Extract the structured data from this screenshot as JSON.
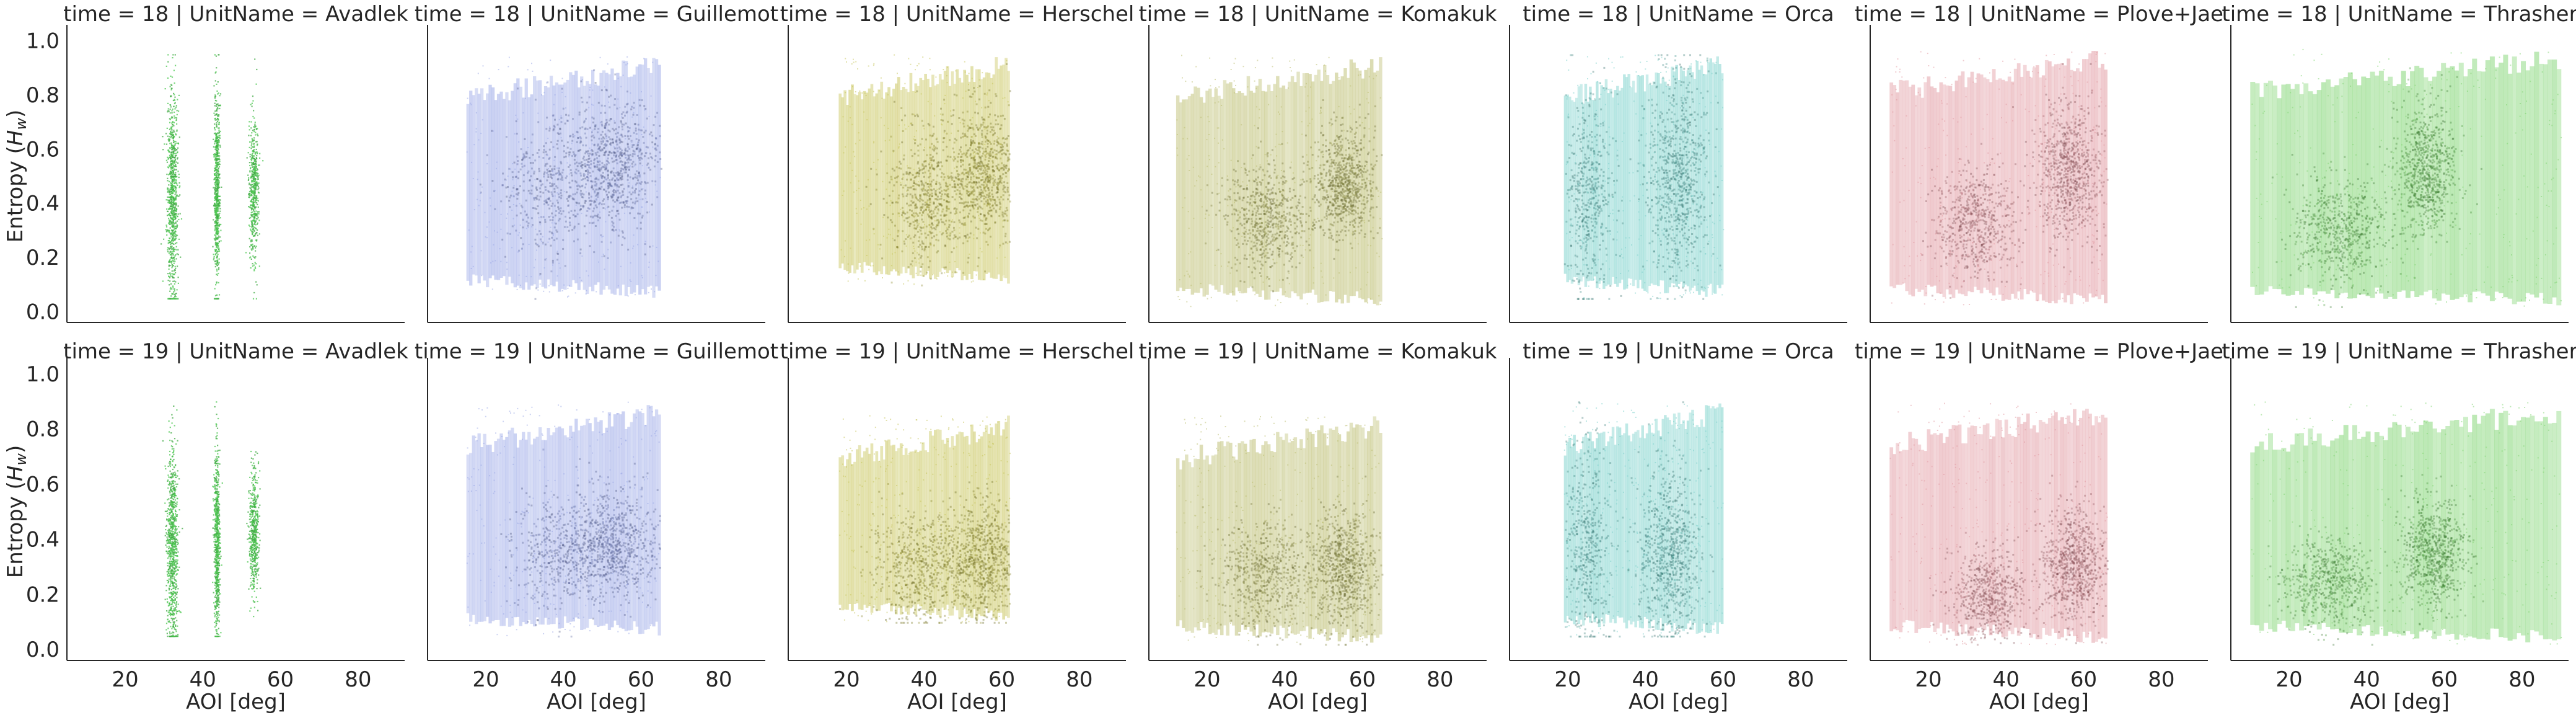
{
  "figure": {
    "y_axis_label": "Entropy (",
    "y_axis_label_sym": "H",
    "y_axis_label_sub": "w",
    "y_axis_label_end": ")",
    "x_axis_label": "AOI [deg]",
    "rows": [
      "time = 18",
      "time = 19"
    ],
    "x_ticks": [
      "20",
      "40",
      "60",
      "80"
    ],
    "y_ticks": [
      "0.0",
      "0.2",
      "0.4",
      "0.6",
      "0.8",
      "1.0"
    ]
  },
  "chart_data": [
    {
      "type": "scatter",
      "title": "time = 18 | UnitName = Avadlek",
      "color": "#4cc850",
      "x_range": [
        10,
        60
      ],
      "y_range": [
        0.05,
        0.95
      ],
      "xlabel": "",
      "ylabel": "Entropy (Hw)",
      "xlim": [
        5,
        92
      ],
      "ylim": [
        -0.04,
        1.04
      ],
      "clusters": [
        {
          "x": 32,
          "x_spread": 1.2,
          "y_center": 0.42,
          "y_spread": 0.22,
          "weight": 1.0
        },
        {
          "x": 43.5,
          "x_spread": 0.6,
          "y_center": 0.45,
          "y_spread": 0.2,
          "weight": 0.8
        },
        {
          "x": 53,
          "x_spread": 1.0,
          "y_center": 0.45,
          "y_spread": 0.15,
          "weight": 0.6
        }
      ]
    },
    {
      "type": "scatter",
      "title": "time = 18 | UnitName = Guillemot",
      "color": "#7e8fe0",
      "x_range": [
        15,
        65
      ],
      "y_range": [
        0.05,
        0.95
      ],
      "xlabel": "",
      "ylabel": "",
      "xlim": [
        5,
        92
      ],
      "ylim": [
        -0.04,
        1.04
      ],
      "clusters": [
        {
          "x": 52,
          "x_spread": 6,
          "y_center": 0.55,
          "y_spread": 0.12,
          "weight": 1.0
        },
        {
          "x": 36,
          "x_spread": 6,
          "y_center": 0.45,
          "y_spread": 0.12,
          "weight": 0.5
        }
      ]
    },
    {
      "type": "scatter",
      "title": "time = 18 | UnitName = Herschel",
      "color": "#b8b42c",
      "x_range": [
        18,
        62
      ],
      "y_range": [
        0.1,
        0.95
      ],
      "xlabel": "",
      "ylabel": "",
      "xlim": [
        5,
        92
      ],
      "ylim": [
        -0.04,
        1.04
      ],
      "clusters": [
        {
          "x": 55,
          "x_spread": 5,
          "y_center": 0.52,
          "y_spread": 0.12,
          "weight": 1.0
        },
        {
          "x": 40,
          "x_spread": 5,
          "y_center": 0.42,
          "y_spread": 0.12,
          "weight": 0.7
        }
      ]
    },
    {
      "type": "scatter",
      "title": "time = 18 | UnitName = Komakuk",
      "color": "#a8aa46",
      "x_range": [
        12,
        65
      ],
      "y_range": [
        0.02,
        0.95
      ],
      "xlabel": "",
      "ylabel": "",
      "xlim": [
        5,
        92
      ],
      "ylim": [
        -0.04,
        1.04
      ],
      "clusters": [
        {
          "x": 55,
          "x_spread": 4,
          "y_center": 0.47,
          "y_spread": 0.1,
          "weight": 1.0
        },
        {
          "x": 35,
          "x_spread": 5,
          "y_center": 0.35,
          "y_spread": 0.1,
          "weight": 0.8
        }
      ]
    },
    {
      "type": "scatter",
      "title": "time = 18 | UnitName = Orca",
      "color": "#56c4bc",
      "x_range": [
        19,
        60
      ],
      "y_range": [
        0.05,
        0.95
      ],
      "xlabel": "",
      "ylabel": "",
      "xlim": [
        5,
        92
      ],
      "ylim": [
        -0.04,
        1.04
      ],
      "clusters": [
        {
          "x": 48,
          "x_spread": 4,
          "y_center": 0.5,
          "y_spread": 0.18,
          "weight": 1.0
        },
        {
          "x": 25,
          "x_spread": 3,
          "y_center": 0.45,
          "y_spread": 0.18,
          "weight": 0.6
        }
      ]
    },
    {
      "type": "scatter",
      "title": "time = 18 | UnitName = Plove+Jae",
      "color": "#d97e88",
      "x_range": [
        10,
        66
      ],
      "y_range": [
        0.02,
        0.97
      ],
      "xlabel": "",
      "ylabel": "",
      "xlim": [
        5,
        92
      ],
      "ylim": [
        -0.04,
        1.04
      ],
      "clusters": [
        {
          "x": 56,
          "x_spread": 4,
          "y_center": 0.52,
          "y_spread": 0.12,
          "weight": 1.0
        },
        {
          "x": 32,
          "x_spread": 5,
          "y_center": 0.33,
          "y_spread": 0.1,
          "weight": 0.8
        }
      ]
    },
    {
      "type": "scatter",
      "title": "time = 18 | UnitName = Thrasher",
      "color": "#5cc84a",
      "x_range": [
        10,
        90
      ],
      "y_range": [
        0.02,
        0.97
      ],
      "xlabel": "",
      "ylabel": "",
      "xlim": [
        5,
        92
      ],
      "ylim": [
        -0.04,
        1.04
      ],
      "clusters": [
        {
          "x": 55,
          "x_spread": 4,
          "y_center": 0.52,
          "y_spread": 0.12,
          "weight": 1.0
        },
        {
          "x": 33,
          "x_spread": 6,
          "y_center": 0.3,
          "y_spread": 0.1,
          "weight": 0.8
        }
      ]
    },
    {
      "type": "scatter",
      "title": "time = 19 | UnitName = Avadlek",
      "color": "#4cc850",
      "x_range": [
        10,
        60
      ],
      "y_range": [
        0.05,
        0.9
      ],
      "xlabel": "AOI [deg]",
      "ylabel": "Entropy (Hw)",
      "xlim": [
        5,
        92
      ],
      "ylim": [
        -0.04,
        1.04
      ],
      "clusters": [
        {
          "x": 32,
          "x_spread": 1.2,
          "y_center": 0.38,
          "y_spread": 0.2,
          "weight": 1.0
        },
        {
          "x": 43.5,
          "x_spread": 0.6,
          "y_center": 0.4,
          "y_spread": 0.18,
          "weight": 0.8
        },
        {
          "x": 53,
          "x_spread": 1.0,
          "y_center": 0.42,
          "y_spread": 0.12,
          "weight": 0.6
        }
      ]
    },
    {
      "type": "scatter",
      "title": "time = 19 | UnitName = Guillemot",
      "color": "#7e8fe0",
      "x_range": [
        15,
        65
      ],
      "y_range": [
        0.05,
        0.9
      ],
      "xlabel": "AOI [deg]",
      "ylabel": "",
      "xlim": [
        5,
        92
      ],
      "ylim": [
        -0.04,
        1.04
      ],
      "clusters": [
        {
          "x": 52,
          "x_spread": 6,
          "y_center": 0.38,
          "y_spread": 0.1,
          "weight": 1.0
        },
        {
          "x": 38,
          "x_spread": 6,
          "y_center": 0.35,
          "y_spread": 0.1,
          "weight": 0.5
        }
      ]
    },
    {
      "type": "scatter",
      "title": "time = 19 | UnitName = Herschel",
      "color": "#b8b42c",
      "x_range": [
        18,
        62
      ],
      "y_range": [
        0.1,
        0.85
      ],
      "xlabel": "AOI [deg]",
      "ylabel": "",
      "xlim": [
        5,
        92
      ],
      "ylim": [
        -0.04,
        1.04
      ],
      "clusters": [
        {
          "x": 55,
          "x_spread": 5,
          "y_center": 0.33,
          "y_spread": 0.1,
          "weight": 1.0
        },
        {
          "x": 38,
          "x_spread": 6,
          "y_center": 0.3,
          "y_spread": 0.1,
          "weight": 0.7
        }
      ]
    },
    {
      "type": "scatter",
      "title": "time = 19 | UnitName = Komakuk",
      "color": "#a8aa46",
      "x_range": [
        12,
        65
      ],
      "y_range": [
        0.02,
        0.85
      ],
      "xlabel": "AOI [deg]",
      "ylabel": "",
      "xlim": [
        5,
        92
      ],
      "ylim": [
        -0.04,
        1.04
      ],
      "clusters": [
        {
          "x": 55,
          "x_spread": 4,
          "y_center": 0.3,
          "y_spread": 0.1,
          "weight": 1.0
        },
        {
          "x": 35,
          "x_spread": 6,
          "y_center": 0.27,
          "y_spread": 0.1,
          "weight": 0.8
        }
      ]
    },
    {
      "type": "scatter",
      "title": "time = 19 | UnitName = Orca",
      "color": "#56c4bc",
      "x_range": [
        19,
        60
      ],
      "y_range": [
        0.05,
        0.9
      ],
      "xlabel": "AOI [deg]",
      "ylabel": "",
      "xlim": [
        5,
        92
      ],
      "ylim": [
        -0.04,
        1.04
      ],
      "clusters": [
        {
          "x": 46,
          "x_spread": 4,
          "y_center": 0.35,
          "y_spread": 0.15,
          "weight": 1.0
        },
        {
          "x": 25,
          "x_spread": 3,
          "y_center": 0.38,
          "y_spread": 0.18,
          "weight": 0.6
        }
      ]
    },
    {
      "type": "scatter",
      "title": "time = 19 | UnitName = Plove+Jae",
      "color": "#d97e88",
      "x_range": [
        10,
        66
      ],
      "y_range": [
        0.02,
        0.9
      ],
      "xlabel": "AOI [deg]",
      "ylabel": "",
      "xlim": [
        5,
        92
      ],
      "ylim": [
        -0.04,
        1.04
      ],
      "clusters": [
        {
          "x": 57,
          "x_spread": 4,
          "y_center": 0.32,
          "y_spread": 0.1,
          "weight": 1.0
        },
        {
          "x": 35,
          "x_spread": 5,
          "y_center": 0.2,
          "y_spread": 0.08,
          "weight": 0.8
        }
      ]
    },
    {
      "type": "scatter",
      "title": "time = 19 | UnitName = Thrasher",
      "color": "#5cc84a",
      "x_range": [
        10,
        90
      ],
      "y_range": [
        0.02,
        0.9
      ],
      "xlabel": "AOI [deg]",
      "ylabel": "",
      "xlim": [
        5,
        92
      ],
      "ylim": [
        -0.04,
        1.04
      ],
      "clusters": [
        {
          "x": 57,
          "x_spread": 4,
          "y_center": 0.35,
          "y_spread": 0.1,
          "weight": 1.0
        },
        {
          "x": 30,
          "x_spread": 6,
          "y_center": 0.25,
          "y_spread": 0.08,
          "weight": 0.8
        }
      ]
    }
  ]
}
